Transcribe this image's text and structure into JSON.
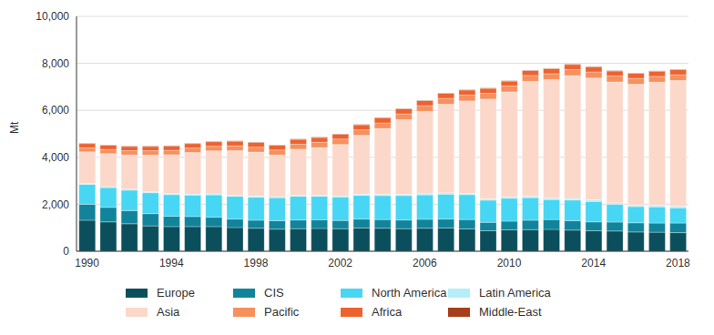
{
  "chart_data": {
    "type": "bar",
    "stacked": true,
    "grid": true,
    "legend": "bottom",
    "y_label": "Mt",
    "categories": [
      "1990",
      null,
      null,
      null,
      "1994",
      null,
      null,
      null,
      "1998",
      null,
      null,
      null,
      "2002",
      null,
      null,
      null,
      "2006",
      null,
      null,
      null,
      "2010",
      null,
      null,
      null,
      "2014",
      null,
      null,
      null,
      "2018"
    ],
    "ylim": [
      0,
      10000
    ],
    "yticks": [
      0,
      {
        "value": 2000,
        "label": "2,000"
      },
      {
        "value": 4000,
        "label": "4,000"
      },
      {
        "value": 6000,
        "label": "6,000"
      },
      {
        "value": 8000,
        "label": "8,000"
      },
      {
        "value": 10000,
        "label": "10,000"
      }
    ],
    "series": [
      {
        "name": "Europe",
        "color": "#0b4f5c",
        "values": [
          1320,
          1250,
          1170,
          1080,
          1050,
          1050,
          1050,
          1010,
          980,
          940,
          960,
          970,
          960,
          990,
          980,
          960,
          980,
          990,
          950,
          870,
          910,
          920,
          930,
          900,
          870,
          860,
          820,
          810,
          790
        ]
      },
      {
        "name": "CIS",
        "color": "#11849b",
        "values": [
          680,
          620,
          560,
          520,
          440,
          430,
          400,
          360,
          340,
          360,
          370,
          370,
          350,
          380,
          370,
          370,
          380,
          380,
          400,
          360,
          370,
          400,
          420,
          400,
          380,
          380,
          390,
          390,
          410
        ]
      },
      {
        "name": "North America",
        "color": "#47d6f3",
        "values": [
          850,
          840,
          870,
          890,
          920,
          910,
          950,
          970,
          980,
          980,
          1010,
          1000,
          1000,
          1010,
          1020,
          1040,
          1040,
          1060,
          1060,
          940,
          980,
          960,
          850,
          880,
          870,
          760,
          690,
          690,
          650
        ]
      },
      {
        "name": "Latin America",
        "color": "#b5eef8",
        "values": [
          40,
          40,
          40,
          42,
          43,
          44,
          45,
          46,
          46,
          47,
          48,
          48,
          48,
          50,
          52,
          54,
          55,
          58,
          58,
          55,
          60,
          62,
          65,
          65,
          66,
          66,
          64,
          64,
          64
        ]
      },
      {
        "name": "Asia",
        "color": "#fcd8ca",
        "values": [
          1345,
          1408,
          1463,
          1565,
          1658,
          1771,
          1830,
          1899,
          1879,
          1773,
          1957,
          2030,
          2189,
          2508,
          2805,
          3184,
          3500,
          3774,
          3932,
          4252,
          4465,
          4893,
          5043,
          5235,
          5191,
          5142,
          5148,
          5246,
          5356
        ]
      },
      {
        "name": "Pacific",
        "color": "#f6905e",
        "values": [
          170,
          175,
          178,
          182,
          186,
          190,
          195,
          200,
          205,
          210,
          215,
          222,
          228,
          232,
          238,
          242,
          245,
          248,
          250,
          248,
          250,
          250,
          252,
          255,
          258,
          252,
          248,
          245,
          240
        ]
      },
      {
        "name": "Africa",
        "color": "#ee6230",
        "values": [
          180,
          182,
          184,
          186,
          188,
          190,
          195,
          200,
          205,
          205,
          205,
          205,
          210,
          215,
          220,
          215,
          215,
          215,
          215,
          210,
          210,
          210,
          215,
          220,
          220,
          215,
          215,
          220,
          225
        ]
      },
      {
        "name": "Middle-East",
        "color": "#a63d1b",
        "values": [
          15,
          15,
          15,
          15,
          15,
          15,
          15,
          15,
          15,
          15,
          15,
          15,
          15,
          15,
          15,
          15,
          15,
          15,
          15,
          15,
          15,
          15,
          15,
          15,
          15,
          15,
          15,
          15,
          15
        ]
      }
    ]
  }
}
